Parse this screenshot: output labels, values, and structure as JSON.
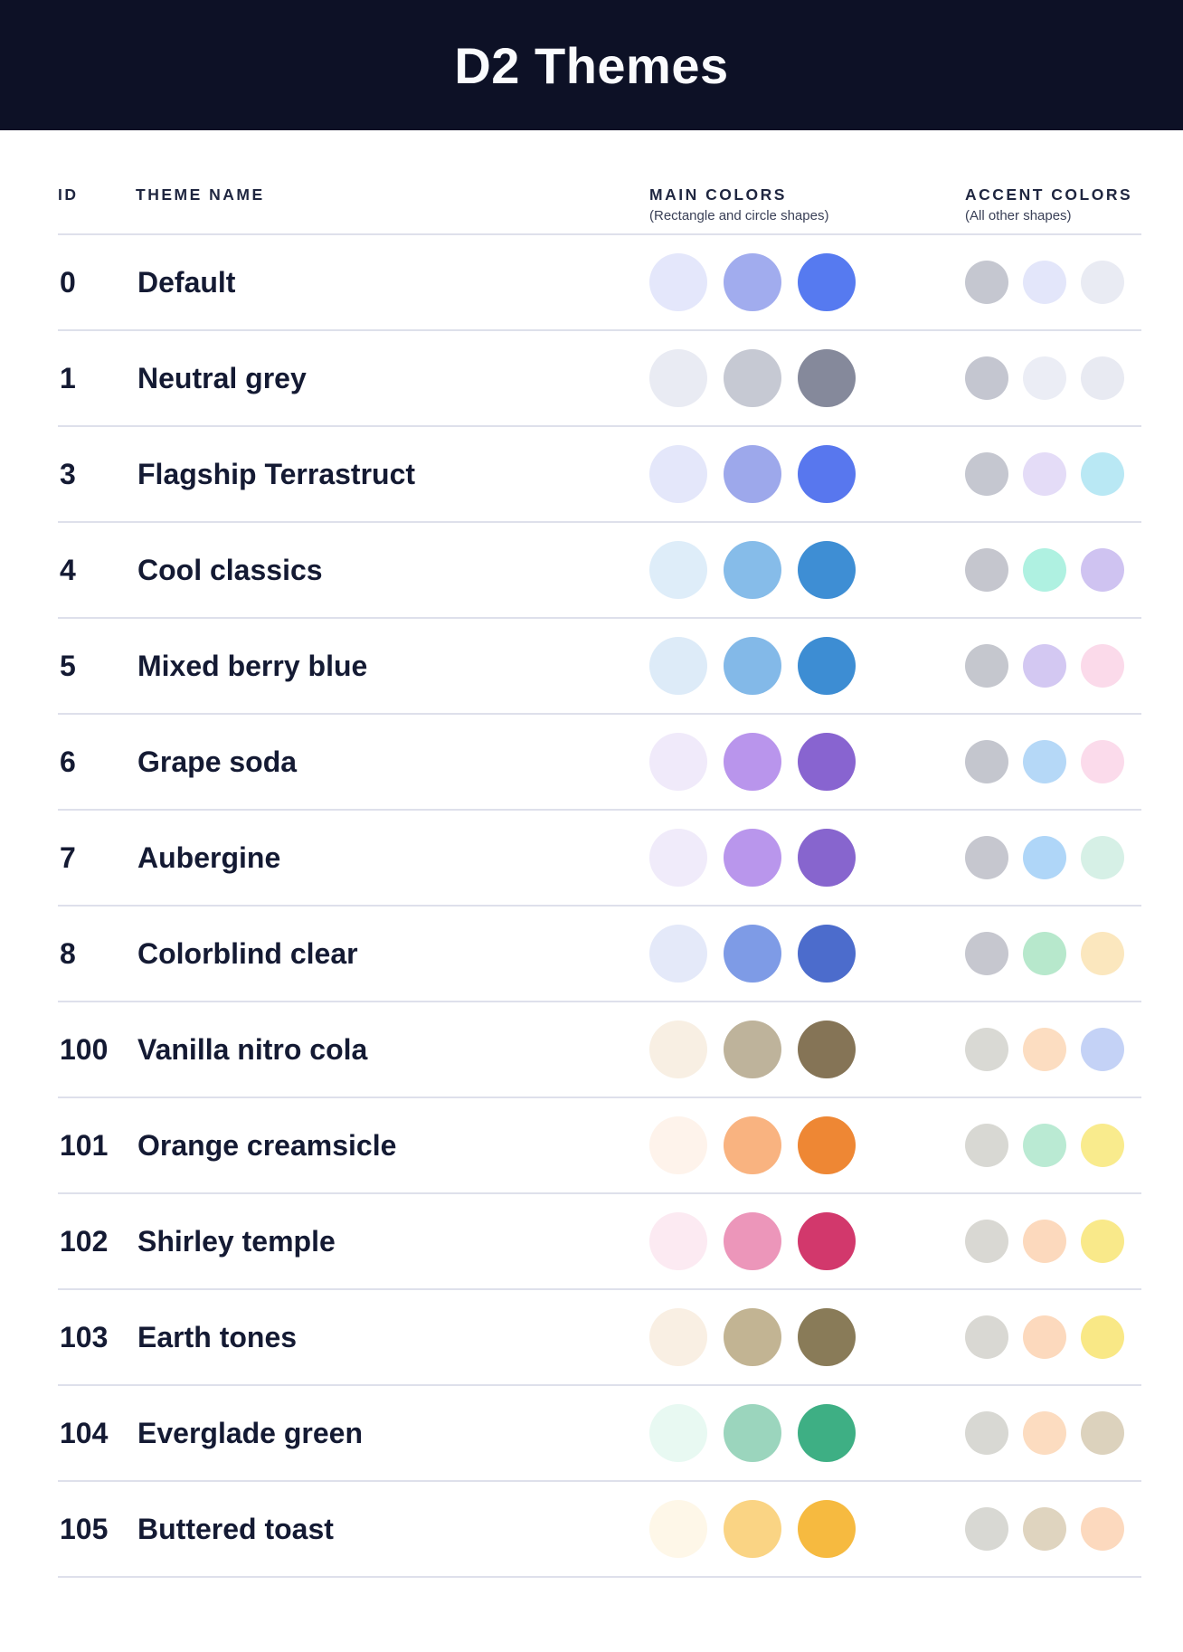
{
  "page": {
    "title": "D2 Themes"
  },
  "colors": {
    "banner_bg": "#0D1126",
    "title_text": "#FAFBFD",
    "body_text": "#141A33",
    "header_label": "#1F2640",
    "subheader_text": "#3A4057",
    "separator": "#DEE0EB"
  },
  "table": {
    "columns": {
      "id": "ID",
      "theme_name": "THEME NAME",
      "main_colors": "MAIN COLORS",
      "main_colors_sub": "(Rectangle and circle shapes)",
      "accent_colors": "ACCENT COLORS",
      "accent_colors_sub": "(All other shapes)"
    },
    "rows": [
      {
        "id": "0",
        "name": "Default",
        "main": [
          "#E4E7FB",
          "#A1ACEE",
          "#567AF0"
        ],
        "accent": [
          "#C5C7D0",
          "#E3E6FA",
          "#E9EBF3"
        ]
      },
      {
        "id": "1",
        "name": "Neutral grey",
        "main": [
          "#E9EBF3",
          "#C6C9D3",
          "#85899B"
        ],
        "accent": [
          "#C4C6D0",
          "#EBEDF5",
          "#E8EAF2"
        ]
      },
      {
        "id": "3",
        "name": "Flagship Terrastruct",
        "main": [
          "#E4E7FA",
          "#9DA8EB",
          "#5877EE"
        ],
        "accent": [
          "#C5C7D0",
          "#E4DCF7",
          "#B9E8F4"
        ]
      },
      {
        "id": "4",
        "name": "Cool classics",
        "main": [
          "#DEEDF9",
          "#86BCE9",
          "#3E8ED4"
        ],
        "accent": [
          "#C5C6CE",
          "#AFF1E1",
          "#CFC3F1"
        ]
      },
      {
        "id": "5",
        "name": "Mixed berry blue",
        "main": [
          "#DDEBF8",
          "#83B9E8",
          "#3D8DD3"
        ],
        "accent": [
          "#C5C7CE",
          "#D3C8F2",
          "#FBDAEA"
        ]
      },
      {
        "id": "6",
        "name": "Grape soda",
        "main": [
          "#F0EAFA",
          "#B995EC",
          "#8864D0"
        ],
        "accent": [
          "#C4C6CE",
          "#B5D8F7",
          "#FBDBEB"
        ]
      },
      {
        "id": "7",
        "name": "Aubergine",
        "main": [
          "#F0EBFA",
          "#B996EC",
          "#8765CE"
        ],
        "accent": [
          "#C6C7CF",
          "#AFD6F8",
          "#D6F0E6"
        ]
      },
      {
        "id": "8",
        "name": "Colorblind clear",
        "main": [
          "#E4E9F9",
          "#7E9BE6",
          "#4C6CCC"
        ],
        "accent": [
          "#C6C7CF",
          "#B7E8CC",
          "#FBE7BE"
        ]
      },
      {
        "id": "100",
        "name": "Vanilla nitro cola",
        "main": [
          "#F8EFE3",
          "#BEB39B",
          "#857456"
        ],
        "accent": [
          "#D9D9D4",
          "#FCDDC1",
          "#C4D2F6"
        ]
      },
      {
        "id": "101",
        "name": "Orange creamsicle",
        "main": [
          "#FEF3EB",
          "#F9B380",
          "#EE8734"
        ],
        "accent": [
          "#D8D8D3",
          "#BAEAD3",
          "#F9EB8D"
        ]
      },
      {
        "id": "102",
        "name": "Shirley temple",
        "main": [
          "#FCEAF2",
          "#EC96BA",
          "#D2386C"
        ],
        "accent": [
          "#D9D8D3",
          "#FCD9BD",
          "#F9E98A"
        ]
      },
      {
        "id": "103",
        "name": "Earth tones",
        "main": [
          "#F9EFE3",
          "#C2B493",
          "#897B58"
        ],
        "accent": [
          "#D9D8D3",
          "#FCD9BD",
          "#F9E886"
        ]
      },
      {
        "id": "104",
        "name": "Everglade green",
        "main": [
          "#E8F9F2",
          "#9BD5BD",
          "#3EAF84"
        ],
        "accent": [
          "#D8D8D3",
          "#FCDCC0",
          "#DCD2BD"
        ]
      },
      {
        "id": "105",
        "name": "Buttered toast",
        "main": [
          "#FEF7E8",
          "#FAD484",
          "#F6BA40"
        ],
        "accent": [
          "#D8D8D3",
          "#DFD4BF",
          "#FCD9BE"
        ]
      }
    ]
  }
}
